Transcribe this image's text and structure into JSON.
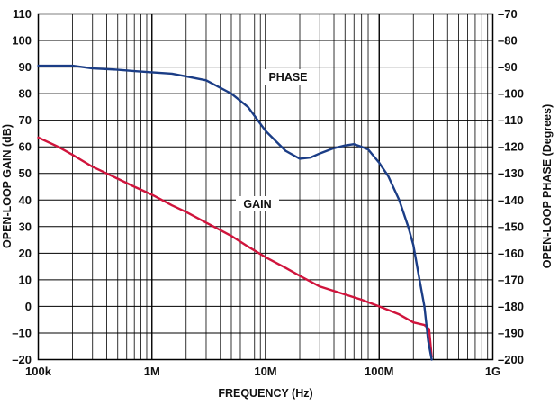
{
  "chart_data": {
    "type": "line",
    "xlabel": "FREQUENCY (Hz)",
    "ylabel": "OPEN-LOOP GAIN (dB)",
    "y2label": "OPEN-LOOP PHASE (Degrees)",
    "x_scale": "log",
    "xlim": [
      100000,
      1000000000
    ],
    "ylim": [
      -20,
      110
    ],
    "y2lim": [
      -200,
      -70
    ],
    "grid": true,
    "x_tick_labels": [
      "100k",
      "1M",
      "10M",
      "100M",
      "1G"
    ],
    "y_tick_labels": [
      "110",
      "100",
      "90",
      "80",
      "70",
      "60",
      "50",
      "40",
      "30",
      "20",
      "10",
      "0",
      "–10",
      "–20"
    ],
    "y2_tick_labels": [
      "–70",
      "–80",
      "–90",
      "–100",
      "–110",
      "–120",
      "–130",
      "–140",
      "–150",
      "–160",
      "–170",
      "–180",
      "–190",
      "–200"
    ],
    "series": [
      {
        "name": "GAIN",
        "axis": "left",
        "color": "#d0143c",
        "x": [
          100000,
          150000,
          200000,
          300000,
          500000,
          700000,
          1000000,
          1500000,
          2000000,
          3000000,
          5000000,
          7000000,
          10000000,
          15000000,
          20000000,
          30000000,
          50000000,
          70000000,
          100000000,
          150000000,
          200000000,
          250000000,
          275000000,
          290000000
        ],
        "y": [
          63.5,
          60,
          57,
          52.5,
          48,
          45,
          42,
          38,
          35.5,
          31.5,
          26.5,
          22.5,
          18.5,
          14.5,
          11.5,
          7.5,
          4.5,
          2.5,
          0,
          -3,
          -6,
          -7,
          -8.5,
          -19
        ]
      },
      {
        "name": "PHASE",
        "axis": "right",
        "color": "#1b3d86",
        "x": [
          100000,
          200000,
          300000,
          500000,
          700000,
          1000000,
          1500000,
          2000000,
          3000000,
          5000000,
          7000000,
          10000000,
          15000000,
          20000000,
          25000000,
          30000000,
          40000000,
          50000000,
          60000000,
          70000000,
          80000000,
          100000000,
          120000000,
          150000000,
          180000000,
          200000000,
          220000000,
          250000000,
          270000000,
          290000000
        ],
        "y": [
          -89.5,
          -89.5,
          -90.5,
          -91,
          -91.5,
          -92,
          -92.5,
          -93.5,
          -95,
          -100,
          -105,
          -114,
          -121.5,
          -124.5,
          -124,
          -122.5,
          -120.5,
          -119.5,
          -119,
          -120,
          -121,
          -126,
          -131,
          -140,
          -150,
          -157,
          -167,
          -180,
          -193,
          -200
        ]
      }
    ]
  }
}
